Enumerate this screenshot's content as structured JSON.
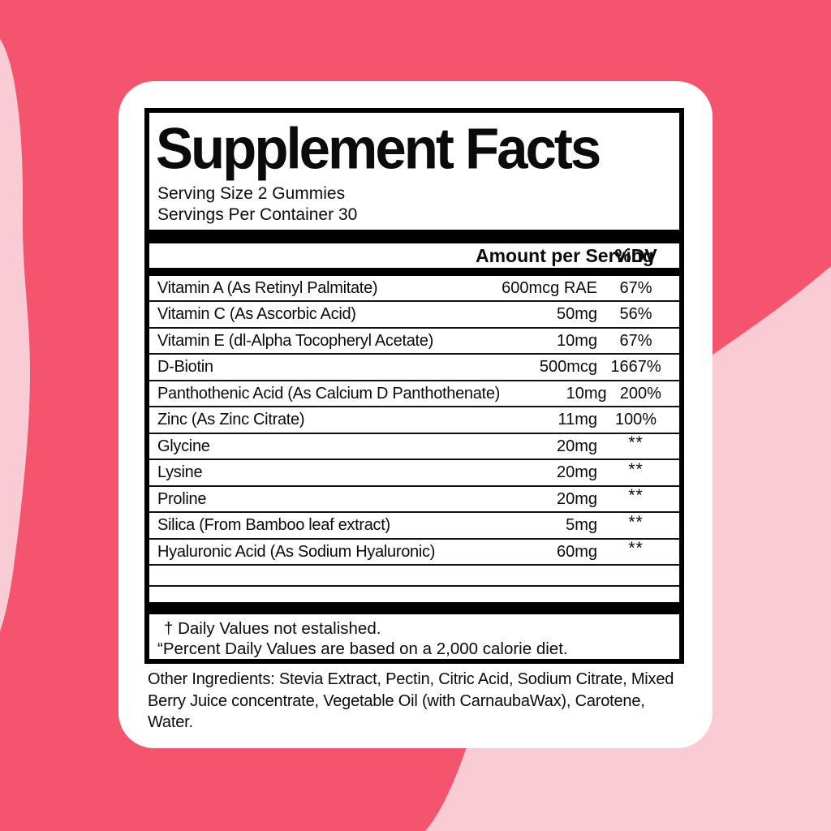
{
  "background": {
    "base_color": "#f4546e",
    "blob_color": "#f9cbd5",
    "card_color": "#ffffff"
  },
  "label": {
    "title": "Supplement Facts",
    "serving_size": "Serving Size 2 Gummies",
    "servings_per_container": "Servings Per Container 30",
    "columns": {
      "amount": "Amount per Serving",
      "dv": "%DV"
    },
    "rows": [
      {
        "name": "Vitamin A (As Retinyl Palmitate)",
        "amount": "600mcg RAE",
        "dv": "67%",
        "dv_is_star": false
      },
      {
        "name": "Vitamin C (As Ascorbic Acid)",
        "amount": "50mg",
        "dv": "56%",
        "dv_is_star": false
      },
      {
        "name": "Vitamin E (dl-Alpha Tocopheryl Acetate)",
        "amount": "10mg",
        "dv": "67%",
        "dv_is_star": false
      },
      {
        "name": "D-Biotin",
        "amount": "500mcg",
        "dv": "1667%",
        "dv_is_star": false
      },
      {
        "name": "Panthothenic Acid (As Calcium D Panthothenate)",
        "amount": "10mg",
        "dv": "200%",
        "dv_is_star": false
      },
      {
        "name": "Zinc (As Zinc Citrate)",
        "amount": "11mg",
        "dv": "100%",
        "dv_is_star": false
      },
      {
        "name": "Glycine",
        "amount": "20mg",
        "dv": "**",
        "dv_is_star": true
      },
      {
        "name": "Lysine",
        "amount": "20mg",
        "dv": "**",
        "dv_is_star": true
      },
      {
        "name": "Proline",
        "amount": "20mg",
        "dv": "**",
        "dv_is_star": true
      },
      {
        "name": "Silica (From Bamboo leaf extract)",
        "amount": "5mg",
        "dv": "**",
        "dv_is_star": true
      },
      {
        "name": "Hyaluronic Acid (As Sodium Hyaluronic)",
        "amount": "60mg",
        "dv": "**",
        "dv_is_star": true
      }
    ],
    "footnotes": {
      "daily_values": "† Daily Values not estalished.",
      "percent_daily_values": "“Percent Daily Values are based on a 2,000 calorie diet."
    },
    "other_ingredients": "Other Ingredients: Stevia Extract, Pectin, Citric Acid, Sodium Citrate, Mixed Berry Juice concentrate, Vegetable Oil (with CarnaubaWax), Carotene, Water."
  }
}
